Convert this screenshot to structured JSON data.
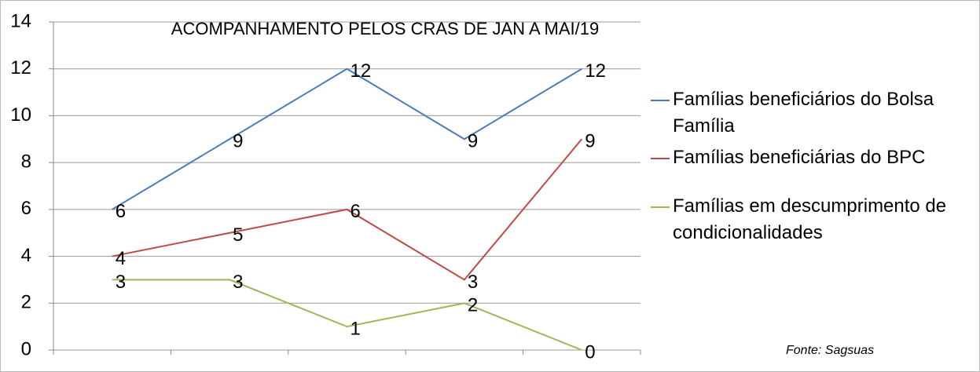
{
  "chart_data": {
    "type": "line",
    "title": "ACOMPANHAMENTO PELOS CRAS DE JAN A MAI/19",
    "categories": [
      null,
      null,
      null,
      null,
      null
    ],
    "series": [
      {
        "name": "Famílias beneficiários do Bolsa Família",
        "color": "#4a7ebb",
        "values": [
          6,
          9,
          12,
          9,
          12
        ]
      },
      {
        "name": "Famílias beneficiárias do BPC",
        "color": "#be4b48",
        "values": [
          4,
          5,
          6,
          3,
          9
        ]
      },
      {
        "name": "Famílias em descumprimento de condicionalidades",
        "color": "#98b954",
        "values": [
          3,
          3,
          1,
          2,
          0
        ]
      }
    ],
    "ylim": [
      0,
      14
    ],
    "yticks": [
      0,
      2,
      4,
      6,
      8,
      10,
      12,
      14
    ],
    "grid": true,
    "legend": "right",
    "annotation": "Fonte: Sagsuas"
  }
}
